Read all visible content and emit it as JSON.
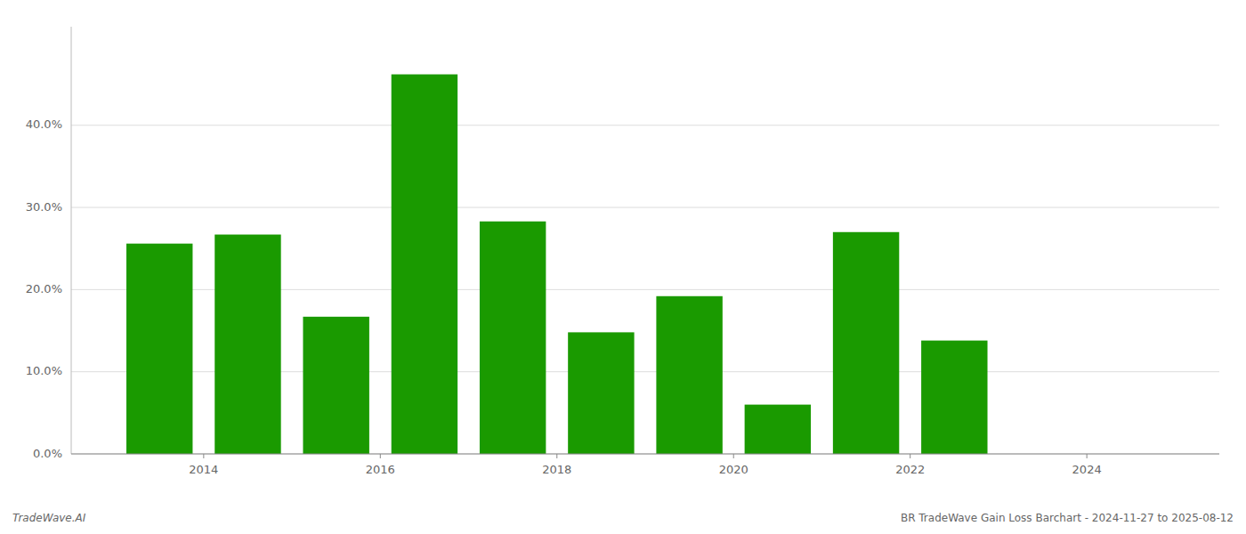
{
  "chart_data": {
    "type": "bar",
    "x": [
      2013.5,
      2014.5,
      2015.5,
      2016.5,
      2017.5,
      2018.5,
      2019.5,
      2020.5,
      2021.5,
      2022.5
    ],
    "values": [
      0.256,
      0.267,
      0.167,
      0.462,
      0.283,
      0.148,
      0.192,
      0.06,
      0.27,
      0.138
    ],
    "color": "#1a9a00",
    "xlim": [
      2012.5,
      2025.5
    ],
    "xticks": [
      2014,
      2016,
      2018,
      2020,
      2022,
      2024
    ],
    "ylim": [
      0.0,
      0.52
    ],
    "yticks": [
      {
        "value": 0.0,
        "label": "0.0%"
      },
      {
        "value": 0.1,
        "label": "10.0%"
      },
      {
        "value": 0.2,
        "label": "20.0%"
      },
      {
        "value": 0.3,
        "label": "30.0%"
      },
      {
        "value": 0.4,
        "label": "40.0%"
      }
    ],
    "grid": true,
    "annotations": [
      "TradeWave.AI",
      "BR TradeWave Gain Loss Barchart - 2024-11-27 to 2025-08-12"
    ]
  }
}
